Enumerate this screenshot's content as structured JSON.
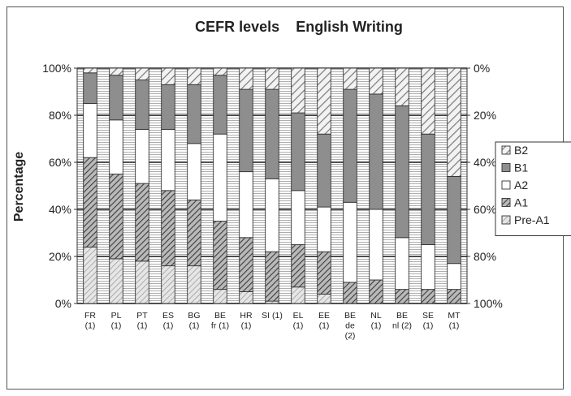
{
  "chart_data": {
    "type": "bar",
    "stacked": true,
    "title": "CEFR levels    English Writing",
    "ylabel": "Percentage",
    "ylim": [
      0,
      100
    ],
    "y_ticks_left": [
      "0%",
      "20%",
      "40%",
      "60%",
      "80%",
      "100%"
    ],
    "y_ticks_right": [
      "100%",
      "80%",
      "60%",
      "40%",
      "20%",
      "0%"
    ],
    "categories": [
      [
        "FR",
        "(1)"
      ],
      [
        "PL",
        "(1)"
      ],
      [
        "PT",
        "(1)"
      ],
      [
        "ES",
        "(1)"
      ],
      [
        "BG",
        "(1)"
      ],
      [
        "BE",
        "fr (1)"
      ],
      [
        "HR",
        "(1)"
      ],
      [
        "SI (1)"
      ],
      [
        "EL",
        "(1)"
      ],
      [
        "EE",
        "(1)"
      ],
      [
        "BE",
        "de",
        "(2)"
      ],
      [
        "NL",
        "(1)"
      ],
      [
        "BE",
        "nl (2)"
      ],
      [
        "SE",
        "(1)"
      ],
      [
        "MT",
        "(1)"
      ]
    ],
    "series": [
      {
        "name": "Pre-A1",
        "values": [
          24,
          19,
          18,
          16,
          16,
          6,
          5,
          1,
          7,
          4,
          0,
          0,
          0,
          0,
          0
        ],
        "pattern": "hatch-light"
      },
      {
        "name": "A1",
        "values": [
          38,
          36,
          33,
          32,
          28,
          29,
          23,
          21,
          18,
          18,
          9,
          10,
          6,
          6,
          6
        ],
        "pattern": "hatch-dark"
      },
      {
        "name": "A2",
        "values": [
          23,
          23,
          23,
          26,
          24,
          37,
          28,
          31,
          23,
          19,
          34,
          30,
          22,
          19,
          11
        ],
        "pattern": "white"
      },
      {
        "name": "B1",
        "values": [
          13,
          19,
          21,
          19,
          25,
          25,
          35,
          38,
          33,
          31,
          48,
          49,
          56,
          47,
          37
        ],
        "pattern": "grey"
      },
      {
        "name": "B2",
        "values": [
          2,
          3,
          5,
          7,
          7,
          3,
          9,
          9,
          19,
          28,
          9,
          11,
          16,
          28,
          46
        ],
        "pattern": "hatch-wide"
      }
    ],
    "legend": {
      "position": "right",
      "order": [
        "B2",
        "B1",
        "A2",
        "A1",
        "Pre-A1"
      ]
    },
    "grid": true
  }
}
